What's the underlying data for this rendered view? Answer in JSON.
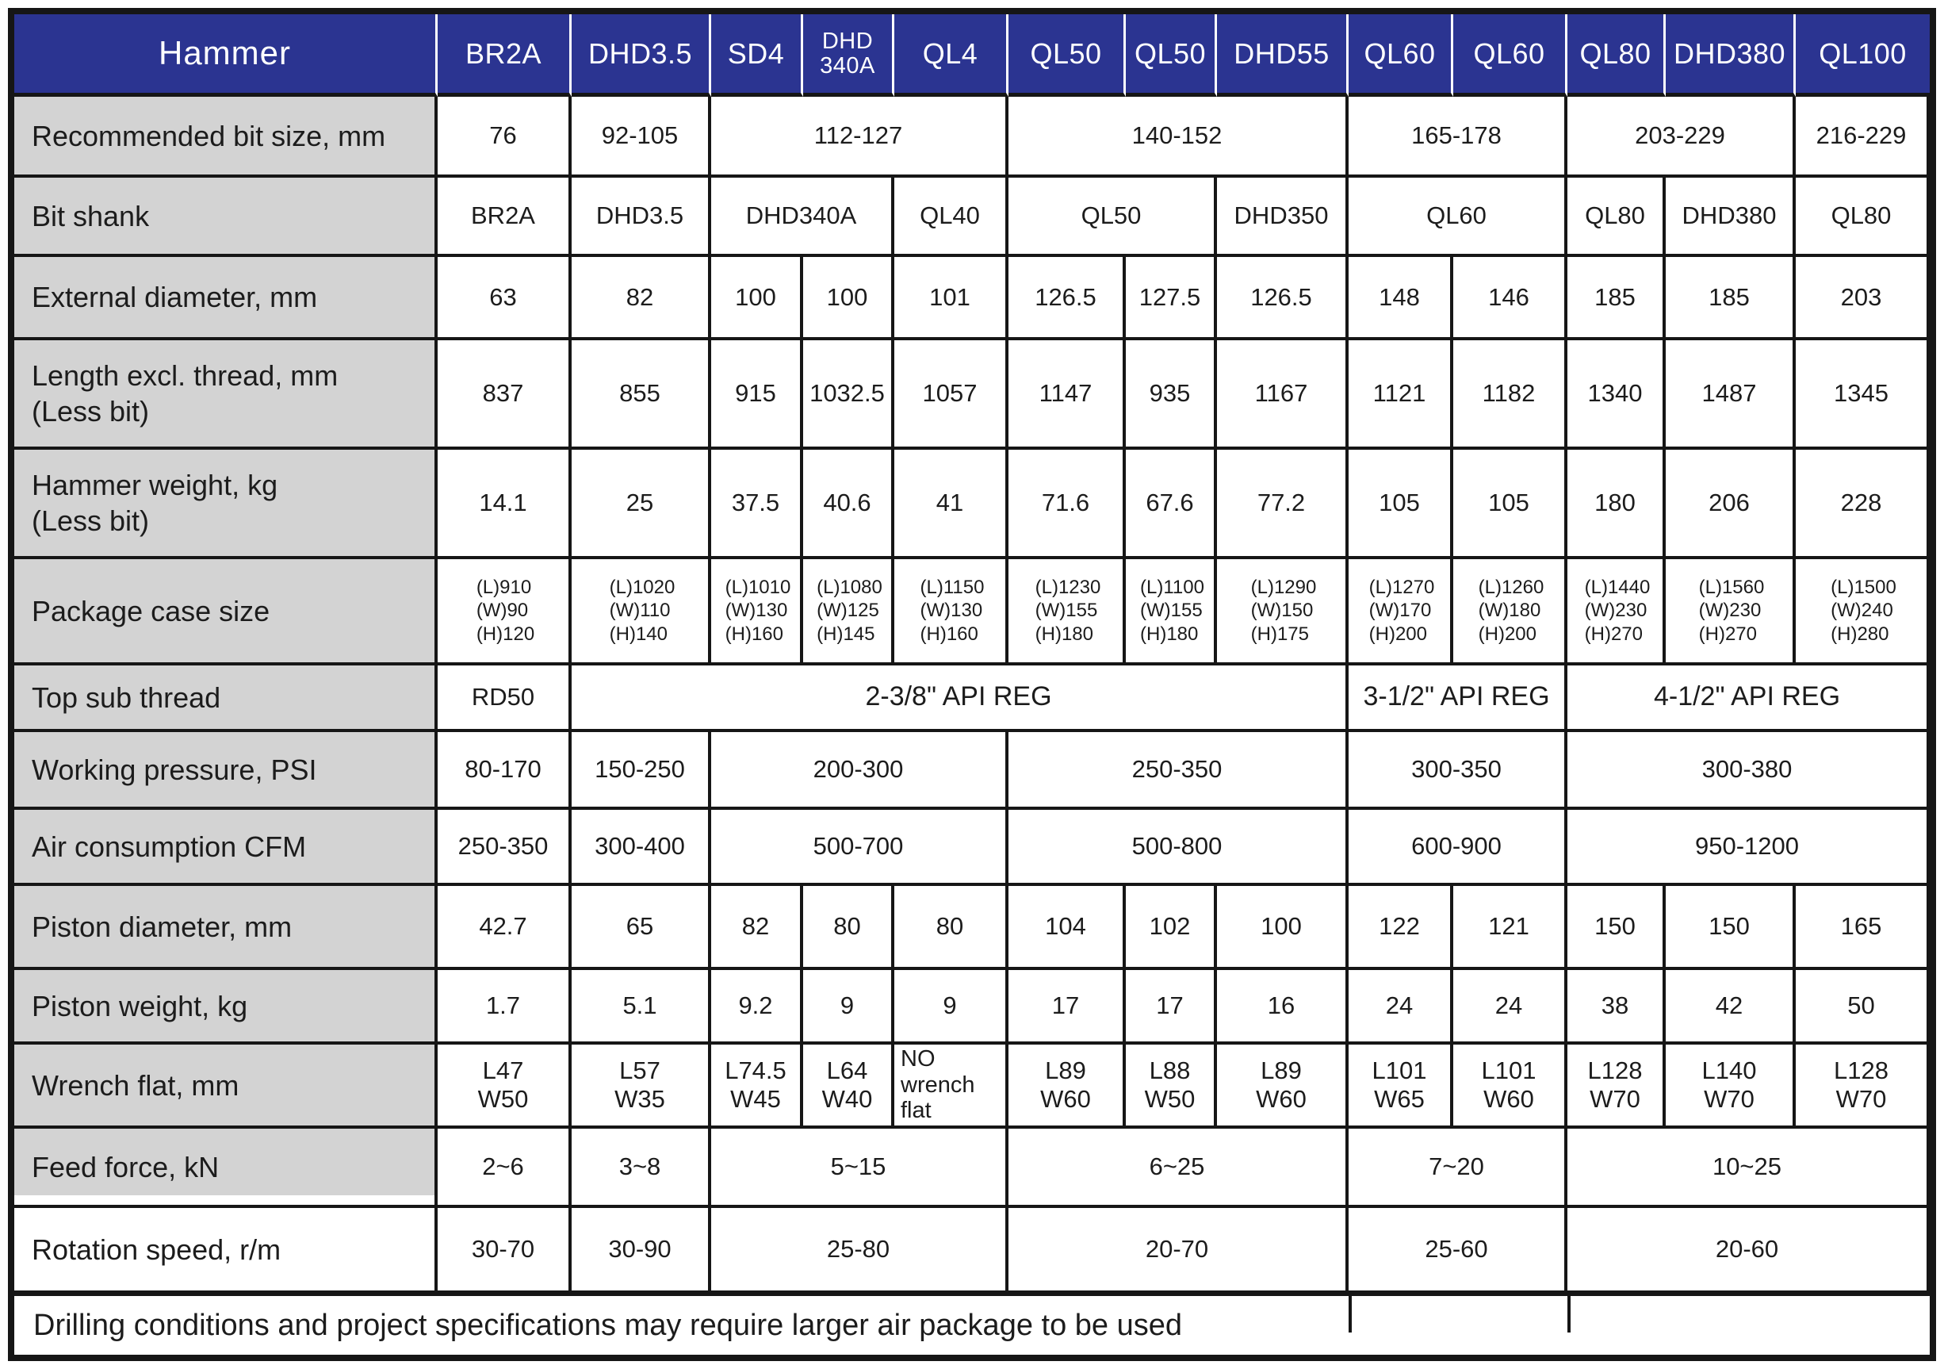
{
  "footer": {
    "note": "Drilling conditions and project specifications may require larger air package to be used"
  },
  "colors": {
    "header_bg": "#2b3491",
    "label_bg": "#d3d3d3",
    "border": "#161616",
    "header_separator": "#ffffff"
  },
  "table": {
    "corner_label": "Hammer",
    "column_headers": [
      {
        "label": "BR2A"
      },
      {
        "label": "DHD3.5"
      },
      {
        "label": "SD4"
      },
      {
        "label": "DHD\n340A",
        "style": "twoline"
      },
      {
        "label": "QL4"
      },
      {
        "label": "QL50"
      },
      {
        "label": "QL50"
      },
      {
        "label": "DHD55"
      },
      {
        "label": "QL60"
      },
      {
        "label": "QL60"
      },
      {
        "label": "QL80"
      },
      {
        "label": "DHD380"
      },
      {
        "label": "QL100"
      }
    ],
    "rows": [
      {
        "label": "Recommended bit size, mm",
        "cells": [
          {
            "t": "76"
          },
          {
            "t": "92-105"
          },
          {
            "t": "112-127",
            "s": 3
          },
          {
            "t": "140-152",
            "s": 3
          },
          {
            "t": "165-178",
            "s": 2
          },
          {
            "t": "203-229",
            "s": 2
          },
          {
            "t": "216-229"
          }
        ]
      },
      {
        "label": "Bit shank",
        "cells": [
          {
            "t": "BR2A"
          },
          {
            "t": "DHD3.5"
          },
          {
            "t": "DHD340A",
            "s": 2
          },
          {
            "t": "QL40"
          },
          {
            "t": "QL50",
            "s": 2
          },
          {
            "t": "DHD350"
          },
          {
            "t": "QL60",
            "s": 2
          },
          {
            "t": "QL80"
          },
          {
            "t": "DHD380"
          },
          {
            "t": "QL80"
          }
        ]
      },
      {
        "label": "External diameter, mm",
        "cells": [
          {
            "t": "63"
          },
          {
            "t": "82"
          },
          {
            "t": "100"
          },
          {
            "t": "100"
          },
          {
            "t": "101"
          },
          {
            "t": "126.5"
          },
          {
            "t": "127.5"
          },
          {
            "t": "126.5"
          },
          {
            "t": "148"
          },
          {
            "t": "146"
          },
          {
            "t": "185"
          },
          {
            "t": "185"
          },
          {
            "t": "203"
          }
        ]
      },
      {
        "label": "Length excl. thread, mm\n(Less bit)",
        "cells": [
          {
            "t": "837"
          },
          {
            "t": "855"
          },
          {
            "t": "915"
          },
          {
            "t": "1032.5"
          },
          {
            "t": "1057"
          },
          {
            "t": "1147"
          },
          {
            "t": "935"
          },
          {
            "t": "1167"
          },
          {
            "t": "1121"
          },
          {
            "t": "1182"
          },
          {
            "t": "1340"
          },
          {
            "t": "1487"
          },
          {
            "t": "1345"
          }
        ]
      },
      {
        "label": "Hammer weight, kg\n(Less bit)",
        "cells": [
          {
            "t": "14.1"
          },
          {
            "t": "25"
          },
          {
            "t": "37.5"
          },
          {
            "t": "40.6"
          },
          {
            "t": "41"
          },
          {
            "t": "71.6"
          },
          {
            "t": "67.6"
          },
          {
            "t": "77.2"
          },
          {
            "t": "105"
          },
          {
            "t": "105"
          },
          {
            "t": "180"
          },
          {
            "t": "206"
          },
          {
            "t": "228"
          }
        ]
      },
      {
        "label": "Package case size",
        "cells": [
          {
            "t": "(L)910\n(W)90\n(H)120",
            "style": "pkg"
          },
          {
            "t": "(L)1020\n(W)110\n(H)140",
            "style": "pkg"
          },
          {
            "t": "(L)1010\n(W)130\n(H)160",
            "style": "pkg"
          },
          {
            "t": "(L)1080\n(W)125\n(H)145",
            "style": "pkg"
          },
          {
            "t": "(L)1150\n(W)130\n(H)160",
            "style": "pkg"
          },
          {
            "t": "(L)1230\n(W)155\n(H)180",
            "style": "pkg"
          },
          {
            "t": "(L)1100\n(W)155\n(H)180",
            "style": "pkg"
          },
          {
            "t": "(L)1290\n(W)150\n(H)175",
            "style": "pkg"
          },
          {
            "t": "(L)1270\n(W)170\n(H)200",
            "style": "pkg"
          },
          {
            "t": "(L)1260\n(W)180\n(H)200",
            "style": "pkg"
          },
          {
            "t": "(L)1440\n(W)230\n(H)270",
            "style": "pkg"
          },
          {
            "t": "(L)1560\n(W)230\n(H)270",
            "style": "pkg"
          },
          {
            "t": "(L)1500\n(W)240\n(H)280",
            "style": "pkg"
          }
        ]
      },
      {
        "label": "Top sub thread",
        "cells": [
          {
            "t": "RD50"
          },
          {
            "t": "2-3/8\" API REG",
            "s": 7,
            "style": "bigmerge"
          },
          {
            "t": "3-1/2\" API REG",
            "s": 2,
            "style": "bigmerge"
          },
          {
            "t": "4-1/2\" API REG",
            "s": 3,
            "style": "bigmerge"
          }
        ]
      },
      {
        "label": "Working pressure, PSI",
        "cells": [
          {
            "t": "80-170"
          },
          {
            "t": "150-250"
          },
          {
            "t": "200-300",
            "s": 3
          },
          {
            "t": "250-350",
            "s": 3
          },
          {
            "t": "300-350",
            "s": 2
          },
          {
            "t": "300-380",
            "s": 3
          }
        ]
      },
      {
        "label": "Air consumption CFM",
        "cells": [
          {
            "t": "250-350"
          },
          {
            "t": "300-400"
          },
          {
            "t": "500-700",
            "s": 3
          },
          {
            "t": "500-800",
            "s": 3
          },
          {
            "t": "600-900",
            "s": 2
          },
          {
            "t": "950-1200",
            "s": 3
          }
        ]
      },
      {
        "label": "Piston diameter, mm",
        "cells": [
          {
            "t": "42.7"
          },
          {
            "t": "65"
          },
          {
            "t": "82"
          },
          {
            "t": "80"
          },
          {
            "t": "80"
          },
          {
            "t": "104"
          },
          {
            "t": "102"
          },
          {
            "t": "100"
          },
          {
            "t": "122"
          },
          {
            "t": "121"
          },
          {
            "t": "150"
          },
          {
            "t": "150"
          },
          {
            "t": "165"
          }
        ]
      },
      {
        "label": "Piston weight, kg",
        "cells": [
          {
            "t": "1.7"
          },
          {
            "t": "5.1"
          },
          {
            "t": "9.2"
          },
          {
            "t": "9"
          },
          {
            "t": "9"
          },
          {
            "t": "17"
          },
          {
            "t": "17"
          },
          {
            "t": "16"
          },
          {
            "t": "24"
          },
          {
            "t": "24"
          },
          {
            "t": "38"
          },
          {
            "t": "42"
          },
          {
            "t": "50"
          }
        ]
      },
      {
        "label": "Wrench flat, mm",
        "cells": [
          {
            "t": "L47\nW50"
          },
          {
            "t": "L57\nW35"
          },
          {
            "t": "L74.5\nW45"
          },
          {
            "t": "L64\nW40"
          },
          {
            "t": "NO\nwrench\nflat",
            "style": "leftcell"
          },
          {
            "t": "L89\nW60"
          },
          {
            "t": "L88\nW50"
          },
          {
            "t": "L89\nW60"
          },
          {
            "t": "L101\nW65"
          },
          {
            "t": "L101\nW60"
          },
          {
            "t": "L128\nW70"
          },
          {
            "t": "L140\nW70"
          },
          {
            "t": "L128\nW70"
          }
        ]
      },
      {
        "label": "Feed force, kN",
        "label_style": "strip",
        "cells": [
          {
            "t": "2~6"
          },
          {
            "t": "3~8"
          },
          {
            "t": "5~15",
            "s": 3
          },
          {
            "t": "6~25",
            "s": 3
          },
          {
            "t": "7~20",
            "s": 2
          },
          {
            "t": "10~25",
            "s": 3
          }
        ]
      },
      {
        "label": "Rotation speed, r/m",
        "label_style": "white",
        "cells": [
          {
            "t": "30-70"
          },
          {
            "t": "30-90"
          },
          {
            "t": "25-80",
            "s": 3
          },
          {
            "t": "20-70",
            "s": 3
          },
          {
            "t": "25-60",
            "s": 2
          },
          {
            "t": "20-60",
            "s": 3
          }
        ]
      }
    ]
  }
}
